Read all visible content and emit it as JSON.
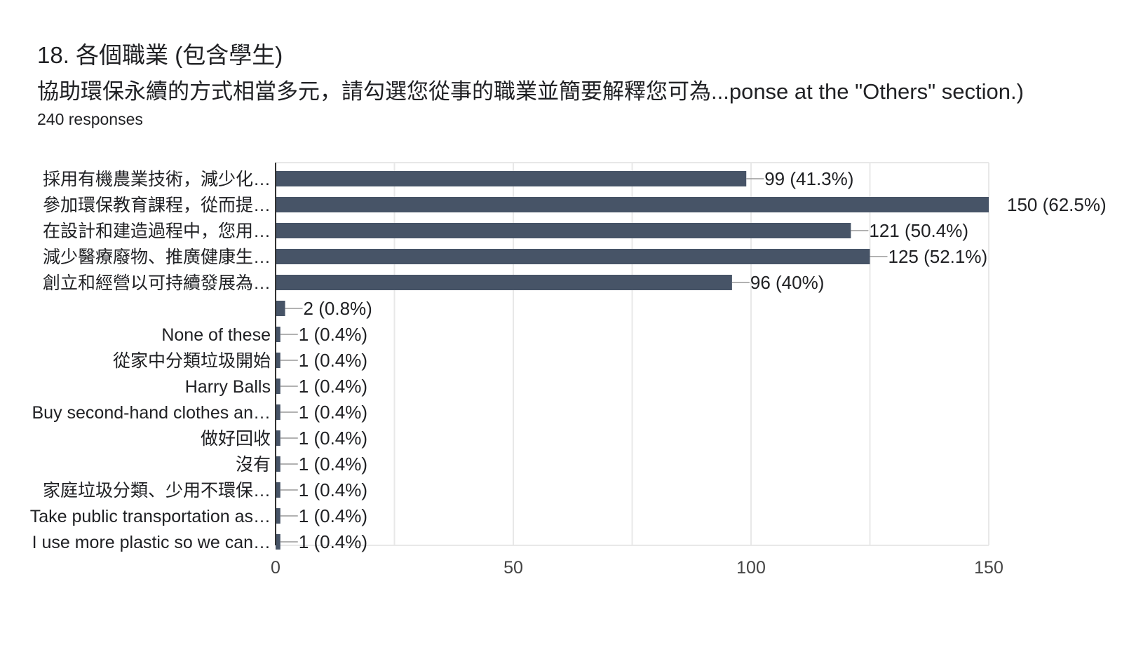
{
  "header": {
    "title": "18. 各個職業 (包含學生)",
    "subtitle": "協助環保永續的方式相當多元，請勾選您從事的職業並簡要解釋您可為...ponse at the \"Others\" section.)",
    "responses": "240 responses"
  },
  "colors": {
    "bar": "#475467",
    "grid": "#e8e8e8",
    "axis": "#333333",
    "leader": "#999999"
  },
  "chart_data": {
    "type": "bar",
    "orientation": "horizontal",
    "title": "18. 各個職業 (包含學生)",
    "categories": [
      "採用有機農業技術，減少化…",
      "參加環保教育課程，從而提…",
      "在設計和建造過程中，您用…",
      "減少醫療廢物、推廣健康生…",
      "創立和經營以可持續發展為…",
      "",
      "None of these",
      "從家中分類垃圾開始",
      "Harry Balls",
      "Buy second-hand clothes an…",
      "做好回收",
      "沒有",
      "家庭垃圾分類、少用不環保…",
      "Take public transportation as…",
      "I use more plastic so we can…"
    ],
    "values": [
      99,
      150,
      121,
      125,
      96,
      2,
      1,
      1,
      1,
      1,
      1,
      1,
      1,
      1,
      1
    ],
    "value_labels": [
      "99 (41.3%)",
      "150 (62.5%)",
      "121 (50.4%)",
      "125 (52.1%)",
      "96 (40%)",
      "2 (0.8%)",
      "1 (0.4%)",
      "1 (0.4%)",
      "1 (0.4%)",
      "1 (0.4%)",
      "1 (0.4%)",
      "1 (0.4%)",
      "1 (0.4%)",
      "1 (0.4%)",
      "1 (0.4%)"
    ],
    "xlim": [
      0,
      150
    ],
    "xticks": [
      0,
      50,
      100,
      150
    ],
    "grid": true,
    "legend": "none"
  }
}
